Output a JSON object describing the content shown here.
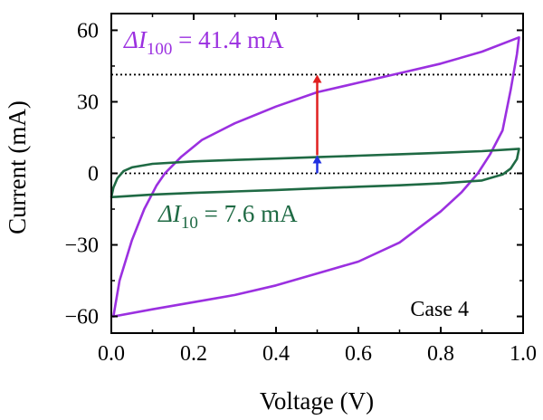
{
  "chart_data": {
    "type": "line",
    "xlabel": "Voltage (V)",
    "ylabel": "Current (mA)",
    "xlim": [
      0.0,
      1.0
    ],
    "ylim": [
      -67,
      67
    ],
    "x_ticks": [
      0.0,
      0.2,
      0.4,
      0.6,
      0.8,
      1.0
    ],
    "x_tick_labels": [
      "0.0",
      "0.2",
      "0.4",
      "0.6",
      "0.8",
      "1.0"
    ],
    "y_ticks": [
      60,
      30,
      0,
      -30,
      -60
    ],
    "y_tick_labels": [
      "60",
      "30",
      "0",
      "−30",
      "−60"
    ],
    "series": [
      {
        "color": "#9b30e0",
        "points": [
          [
            0.005,
            -60
          ],
          [
            0.02,
            -45
          ],
          [
            0.05,
            -28
          ],
          [
            0.08,
            -15
          ],
          [
            0.11,
            -5
          ],
          [
            0.13,
            0
          ],
          [
            0.17,
            7
          ],
          [
            0.22,
            14
          ],
          [
            0.3,
            21
          ],
          [
            0.4,
            28
          ],
          [
            0.5,
            34
          ],
          [
            0.6,
            38
          ],
          [
            0.7,
            42
          ],
          [
            0.8,
            46
          ],
          [
            0.9,
            51
          ],
          [
            0.99,
            57
          ],
          [
            0.985,
            50
          ],
          [
            0.97,
            35
          ],
          [
            0.95,
            18
          ],
          [
            0.92,
            8
          ],
          [
            0.89,
            0
          ],
          [
            0.85,
            -8
          ],
          [
            0.8,
            -16
          ],
          [
            0.7,
            -29
          ],
          [
            0.6,
            -37
          ],
          [
            0.5,
            -42
          ],
          [
            0.4,
            -47
          ],
          [
            0.3,
            -51
          ],
          [
            0.2,
            -54
          ],
          [
            0.1,
            -57
          ],
          [
            0.005,
            -60
          ]
        ]
      },
      {
        "color": "#1f6a44",
        "points": [
          [
            0.0,
            -10
          ],
          [
            0.005,
            -6
          ],
          [
            0.015,
            -2
          ],
          [
            0.03,
            1
          ],
          [
            0.05,
            2.5
          ],
          [
            0.1,
            4
          ],
          [
            0.2,
            5
          ],
          [
            0.3,
            5.6
          ],
          [
            0.4,
            6.2
          ],
          [
            0.5,
            6.8
          ],
          [
            0.6,
            7.4
          ],
          [
            0.7,
            8
          ],
          [
            0.8,
            8.6
          ],
          [
            0.9,
            9.3
          ],
          [
            0.99,
            10.3
          ],
          [
            0.985,
            6
          ],
          [
            0.97,
            2
          ],
          [
            0.95,
            -0.5
          ],
          [
            0.9,
            -3
          ],
          [
            0.8,
            -4.2
          ],
          [
            0.7,
            -5
          ],
          [
            0.6,
            -5.6
          ],
          [
            0.5,
            -6.3
          ],
          [
            0.4,
            -7
          ],
          [
            0.3,
            -7.6
          ],
          [
            0.2,
            -8.2
          ],
          [
            0.1,
            -8.9
          ],
          [
            0.0,
            -10
          ]
        ]
      }
    ],
    "reference_lines": [
      {
        "y": 41.4,
        "x_from": 0.0,
        "x_to": 1.0,
        "style": "dotted",
        "color": "#000000"
      },
      {
        "y": 0,
        "x_from": 0.0,
        "x_to": 1.0,
        "style": "dotted",
        "color": "#000000"
      }
    ],
    "arrows": [
      {
        "x": 0.5,
        "y_from": 7.6,
        "y_to": 41.4,
        "color": "#e02020"
      },
      {
        "x": 0.5,
        "y_from": 0,
        "y_to": 7.6,
        "color": "#2030e0"
      }
    ],
    "annotations": [
      {
        "delta": "Δ",
        "var": "I",
        "sub": "100",
        "rest": " = 41.4 mA",
        "color": "#9b30e0"
      },
      {
        "delta": "Δ",
        "var": "I",
        "sub": "10",
        "rest": " = 7.6 mA",
        "color": "#1f6a44"
      },
      {
        "text": "Case 4",
        "color": "#000000"
      }
    ]
  }
}
